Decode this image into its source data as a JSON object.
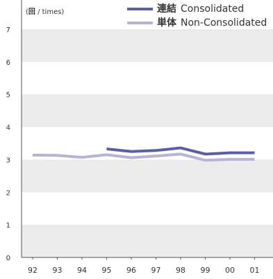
{
  "chart_data": {
    "type": "line",
    "unit_label_bold": "回",
    "unit_label_rest": " / times)",
    "unit_label_open": "(",
    "categories": [
      "92",
      "93",
      "94",
      "95",
      "96",
      "97",
      "98",
      "99",
      "00",
      "01"
    ],
    "ylim": [
      0,
      7
    ],
    "y_ticks": [
      "0",
      "1",
      "2",
      "3",
      "4",
      "5",
      "6",
      "7"
    ],
    "grid": "alternating bands",
    "legend_position": "top-right",
    "series": [
      {
        "name": "連結",
        "name_en": "Consolidated",
        "color": "#5a5ea4",
        "values": [
          null,
          null,
          null,
          3.33,
          3.25,
          3.28,
          3.36,
          3.17,
          3.21,
          3.21
        ]
      },
      {
        "name": "単体",
        "name_en": "Non-Consolidated",
        "color": "#b3b4d8",
        "values": [
          3.14,
          3.13,
          3.07,
          3.15,
          3.06,
          3.11,
          3.17,
          2.98,
          3.01,
          3.01
        ]
      }
    ]
  }
}
